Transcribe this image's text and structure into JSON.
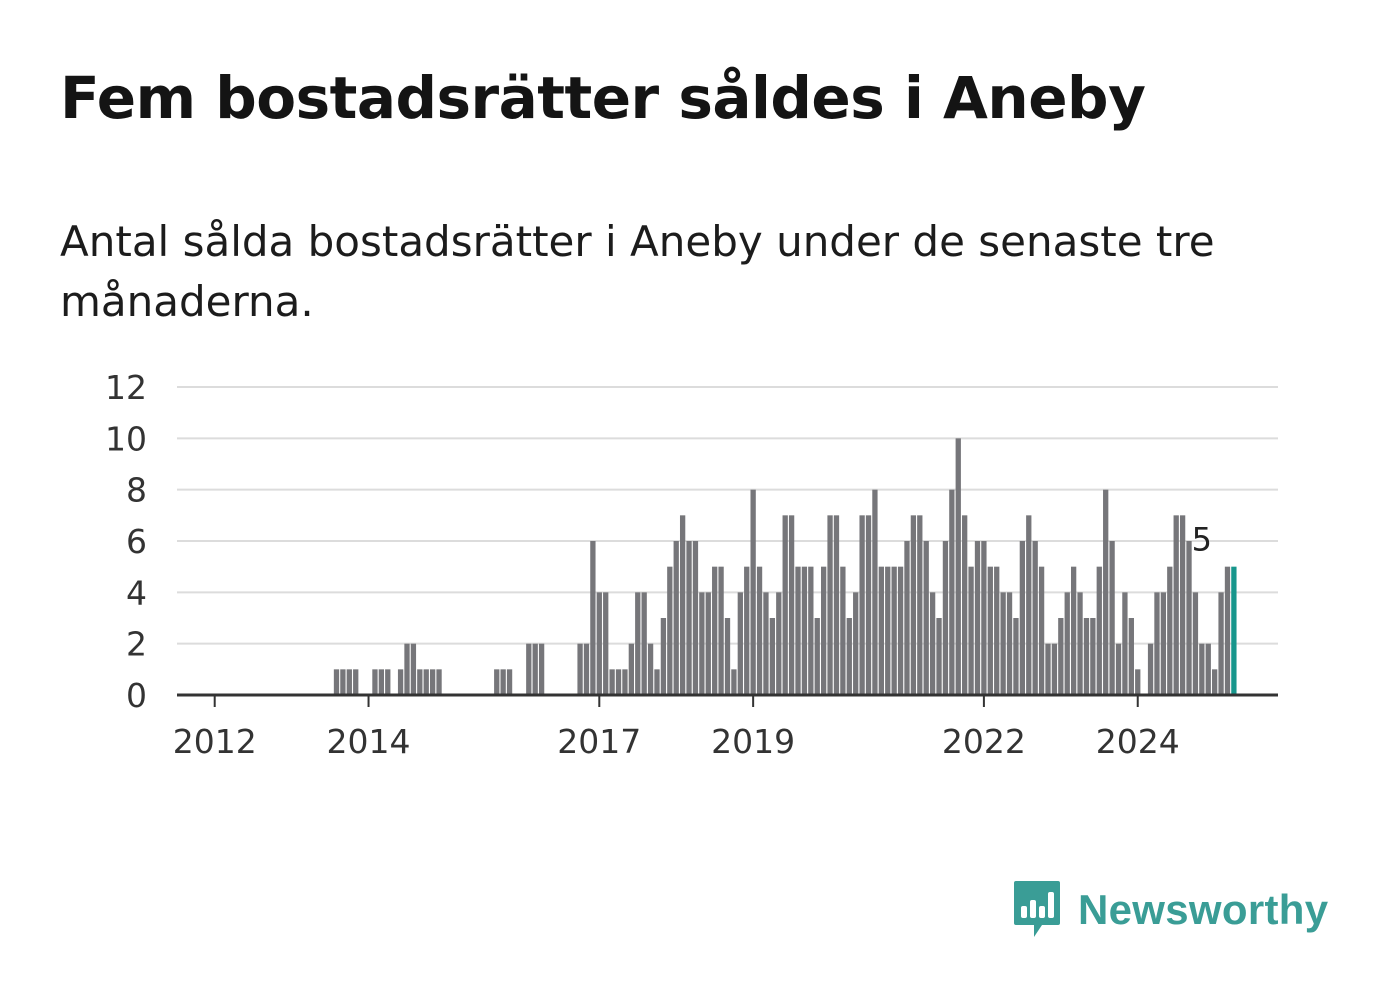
{
  "title": "Fem bostadsrätter såldes i Aneby",
  "subtitle": "Antal sålda bostadsrätter i Aneby under de senaste tre månaderna.",
  "brand": {
    "name": "Newsworthy",
    "icon": "newsworthy-logo-icon",
    "color": "#3a9d96"
  },
  "colors": {
    "bar": "#76767a",
    "highlight": "#17968c",
    "grid": "#dcdcdc",
    "axis": "#333333"
  },
  "chart_data": {
    "type": "bar",
    "title": "Fem bostadsrätter såldes i Aneby",
    "subtitle": "Antal sålda bostadsrätter i Aneby under de senaste tre månaderna.",
    "xlabel": "",
    "ylabel": "",
    "ylim": [
      0,
      12
    ],
    "yticks": [
      0,
      2,
      4,
      6,
      8,
      10,
      12
    ],
    "xticks": [
      "2012",
      "2014",
      "2017",
      "2019",
      "2022",
      "2024"
    ],
    "grid": true,
    "legend": "none",
    "start_month": "2011-08",
    "end_month": "2024-11",
    "values": [
      0,
      0,
      0,
      0,
      0,
      0,
      0,
      0,
      0,
      0,
      0,
      0,
      0,
      0,
      0,
      0,
      0,
      0,
      0,
      0,
      0,
      0,
      0,
      0,
      1,
      1,
      1,
      1,
      0,
      0,
      1,
      1,
      1,
      0,
      1,
      2,
      2,
      1,
      1,
      1,
      1,
      0,
      0,
      0,
      0,
      0,
      0,
      0,
      0,
      1,
      1,
      1,
      0,
      0,
      2,
      2,
      2,
      0,
      0,
      0,
      0,
      0,
      2,
      2,
      6,
      4,
      4,
      1,
      1,
      1,
      2,
      4,
      4,
      2,
      1,
      3,
      5,
      6,
      7,
      6,
      6,
      4,
      4,
      5,
      5,
      3,
      1,
      4,
      5,
      8,
      5,
      4,
      3,
      4,
      7,
      7,
      5,
      5,
      5,
      3,
      5,
      7,
      7,
      5,
      3,
      4,
      7,
      7,
      8,
      5,
      5,
      5,
      5,
      6,
      7,
      7,
      6,
      4,
      3,
      6,
      8,
      10,
      7,
      5,
      6,
      6,
      5,
      5,
      4,
      4,
      3,
      6,
      7,
      6,
      5,
      2,
      2,
      3,
      4,
      5,
      4,
      3,
      3,
      5,
      8,
      6,
      2,
      4,
      3,
      1,
      0,
      2,
      4,
      4,
      5,
      7,
      7,
      6,
      4,
      2,
      2,
      1,
      4,
      5,
      5
    ],
    "highlight_last": true,
    "data_labels": [
      {
        "month": "2024-11",
        "value": 5,
        "text": "5"
      }
    ]
  }
}
